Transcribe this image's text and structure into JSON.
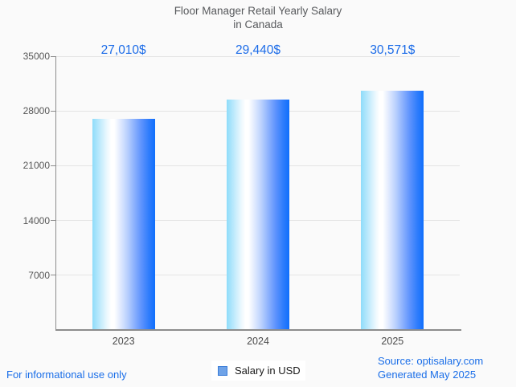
{
  "title": {
    "line1": "Floor Manager Retail Yearly Salary",
    "line2": "in Canada"
  },
  "chart_data": {
    "type": "bar",
    "title": "Floor Manager Retail Yearly Salary in Canada",
    "categories": [
      "2023",
      "2024",
      "2025"
    ],
    "series": [
      {
        "name": "Salary in USD",
        "values": [
          27010,
          29440,
          30571
        ]
      }
    ],
    "value_labels": [
      "27,010$",
      "29,440$",
      "30,571$"
    ],
    "xlabel": "",
    "ylabel": "",
    "ylim": [
      0,
      35000
    ],
    "yticks": [
      7000,
      14000,
      21000,
      28000,
      35000
    ],
    "grid": "horizontal",
    "legend_position": "bottom-center",
    "bar_gradient_edges": [
      "#8edcfa",
      "#ffffff",
      "#0f6efc"
    ]
  },
  "legend": {
    "marker_fill": "#6fa3e8",
    "marker_border": "#3b7dd8"
  },
  "footer": {
    "disclaimer": "For informational use only",
    "source": "Source: optisalary.com",
    "generated": "Generated May 2025"
  },
  "colors": {
    "background": "#fafafa",
    "title_text": "#57595c",
    "value_label_blue": "#1c6ce8",
    "footer_blue": "#1a6ee8",
    "axis_gray": "#8c8c8c",
    "grid_gray": "#e4e4e4",
    "tick_label_gray": "#565656"
  }
}
